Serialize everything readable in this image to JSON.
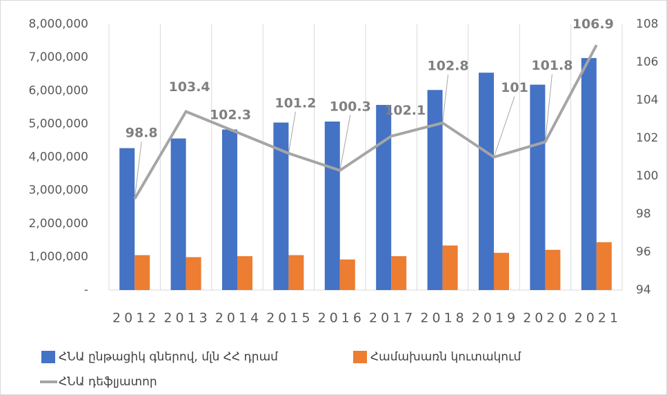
{
  "chart_data": {
    "type": "bar",
    "categories": [
      "2012",
      "2013",
      "2014",
      "2015",
      "2016",
      "2017",
      "2018",
      "2019",
      "2020",
      "2021"
    ],
    "series": [
      {
        "name": "ՀՆԱ ընթացիկ գներով, մլն ՀՀ դրամ",
        "type": "bar",
        "color": "#4472c4",
        "values": [
          4270000,
          4560000,
          4830000,
          5040000,
          5070000,
          5570000,
          6020000,
          6540000,
          6180000,
          6980000
        ]
      },
      {
        "name": "Համախառն կուտակում",
        "type": "bar",
        "color": "#ed7d31",
        "values": [
          1050000,
          990000,
          1020000,
          1050000,
          920000,
          1020000,
          1340000,
          1120000,
          1210000,
          1440000
        ]
      },
      {
        "name": "ՀՆԱ դեֆլյատոր",
        "type": "line",
        "axis": "y2",
        "color": "#a5a5a5",
        "values": [
          98.8,
          103.4,
          102.3,
          101.2,
          100.3,
          102.1,
          102.8,
          101,
          101.8,
          106.9
        ]
      }
    ],
    "ylim": [
      0,
      8000000
    ],
    "yticks": [
      {
        "value": 0,
        "label": "-"
      },
      {
        "value": 1000000,
        "label": "1,000,000"
      },
      {
        "value": 2000000,
        "label": "2,000,000"
      },
      {
        "value": 3000000,
        "label": "3,000,000"
      },
      {
        "value": 4000000,
        "label": "4,000,000"
      },
      {
        "value": 5000000,
        "label": "5,000,000"
      },
      {
        "value": 6000000,
        "label": "6,000,000"
      },
      {
        "value": 7000000,
        "label": "7,000,000"
      },
      {
        "value": 8000000,
        "label": "8,000,000"
      }
    ],
    "y2lim": [
      94,
      108
    ],
    "y2ticks": [
      94,
      96,
      98,
      100,
      102,
      104,
      106,
      108
    ],
    "grid": true,
    "legend": "bottom"
  }
}
